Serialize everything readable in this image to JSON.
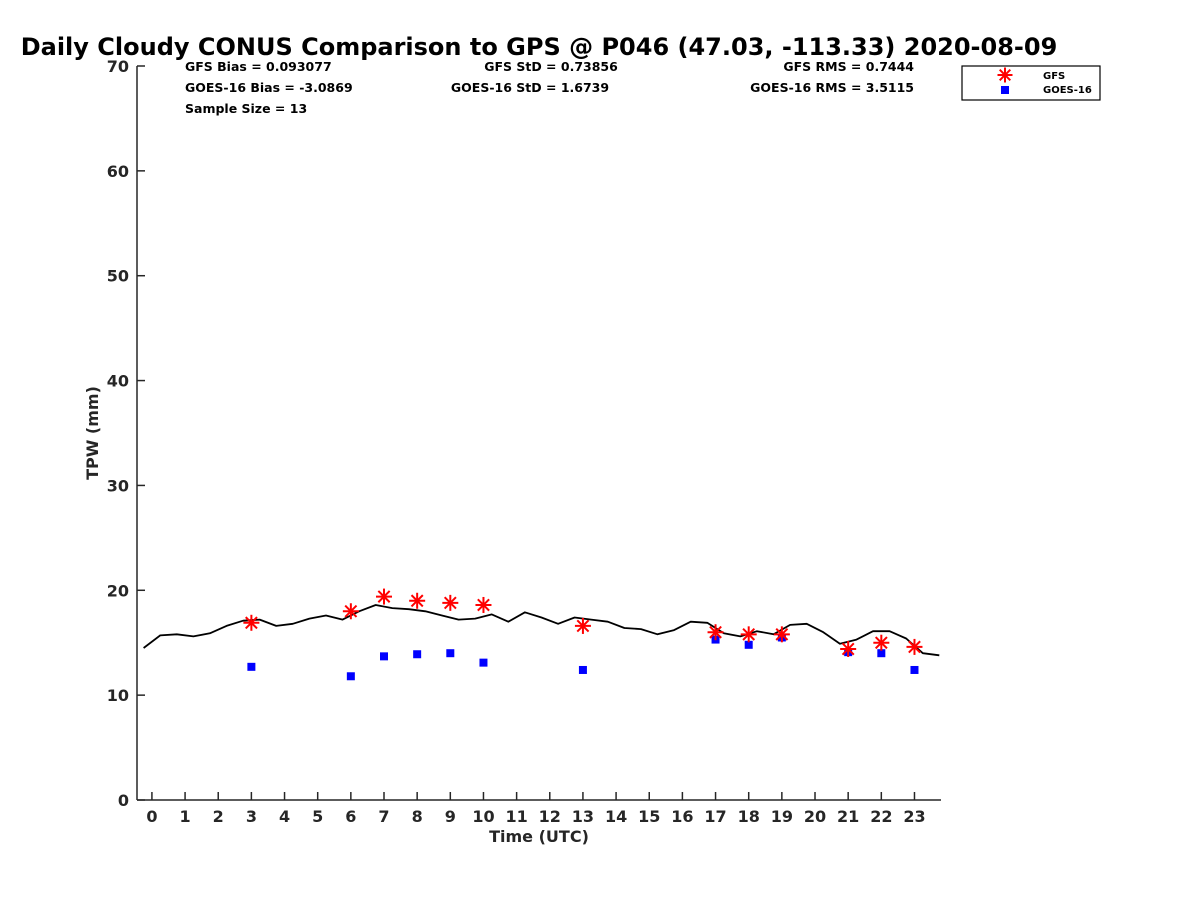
{
  "chart_data": {
    "type": "line",
    "title": "Daily Cloudy CONUS Comparison to GPS @ P046 (47.03, -113.33) 2020-08-09",
    "xlabel": "Time (UTC)",
    "ylabel": "TPW (mm)",
    "xlim": [
      -0.45,
      23.8
    ],
    "ylim": [
      0,
      70
    ],
    "x_ticks": [
      "0",
      "1",
      "2",
      "3",
      "4",
      "5",
      "6",
      "7",
      "8",
      "9",
      "10",
      "11",
      "12",
      "13",
      "14",
      "15",
      "16",
      "17",
      "18",
      "19",
      "20",
      "21",
      "22",
      "23"
    ],
    "y_ticks": [
      "0",
      "10",
      "20",
      "30",
      "40",
      "50",
      "60",
      "70"
    ],
    "grid": false,
    "legend_position": "top-right",
    "stats": {
      "gfs_bias": "GFS Bias = 0.093077",
      "gfs_std": "GFS StD = 0.73856",
      "gfs_rms": "GFS RMS = 0.7444",
      "goes_bias": "GOES-16 Bias = -3.0869",
      "goes_std": "GOES-16 StD = 1.6739",
      "goes_rms": "GOES-16 RMS = 3.5115",
      "sample_size": "Sample Size = 13"
    },
    "series": [
      {
        "kind": "line",
        "color": "#000000",
        "x": [
          -0.25,
          0.25,
          0.75,
          1.25,
          1.75,
          2.25,
          2.75,
          3.25,
          3.75,
          4.25,
          4.75,
          5.25,
          5.75,
          6.25,
          6.75,
          7.25,
          7.75,
          8.25,
          8.75,
          9.25,
          9.75,
          10.25,
          10.75,
          11.25,
          11.75,
          12.25,
          12.75,
          13.25,
          13.75,
          14.25,
          14.75,
          15.25,
          15.75,
          16.25,
          16.75,
          17.25,
          17.75,
          18.25,
          18.75,
          19.25,
          19.75,
          20.25,
          20.75,
          21.25,
          21.75,
          22.25,
          22.75,
          23.25,
          23.75
        ],
        "y": [
          14.5,
          15.7,
          15.8,
          15.6,
          15.9,
          16.6,
          17.1,
          17.2,
          16.6,
          16.8,
          17.3,
          17.6,
          17.2,
          18.0,
          18.6,
          18.3,
          18.2,
          18.0,
          17.6,
          17.2,
          17.3,
          17.7,
          17.0,
          17.9,
          17.4,
          16.8,
          17.4,
          17.2,
          17.0,
          16.4,
          16.3,
          15.8,
          16.2,
          17.0,
          16.9,
          15.9,
          15.6,
          16.1,
          15.8,
          16.7,
          16.8,
          16.0,
          14.9,
          15.3,
          16.1,
          16.1,
          15.4,
          14.0,
          13.8
        ]
      },
      {
        "name": "GFS",
        "kind": "scatter",
        "marker": "asterisk",
        "color": "#ff0000",
        "x": [
          3,
          6,
          7,
          8,
          9,
          10,
          13,
          17,
          18,
          19,
          21,
          22,
          23
        ],
        "y": [
          16.9,
          18.0,
          19.4,
          19.0,
          18.8,
          18.6,
          16.6,
          16.0,
          15.8,
          15.8,
          14.4,
          15.0,
          14.6
        ]
      },
      {
        "name": "GOES-16",
        "kind": "scatter",
        "marker": "square",
        "color": "#0000ff",
        "x": [
          3,
          6,
          7,
          8,
          9,
          10,
          13,
          17,
          18,
          19,
          21,
          22,
          23
        ],
        "y": [
          12.7,
          11.8,
          13.7,
          13.9,
          14.0,
          13.1,
          12.4,
          15.3,
          14.8,
          15.5,
          14.1,
          14.0,
          12.4
        ]
      }
    ]
  }
}
